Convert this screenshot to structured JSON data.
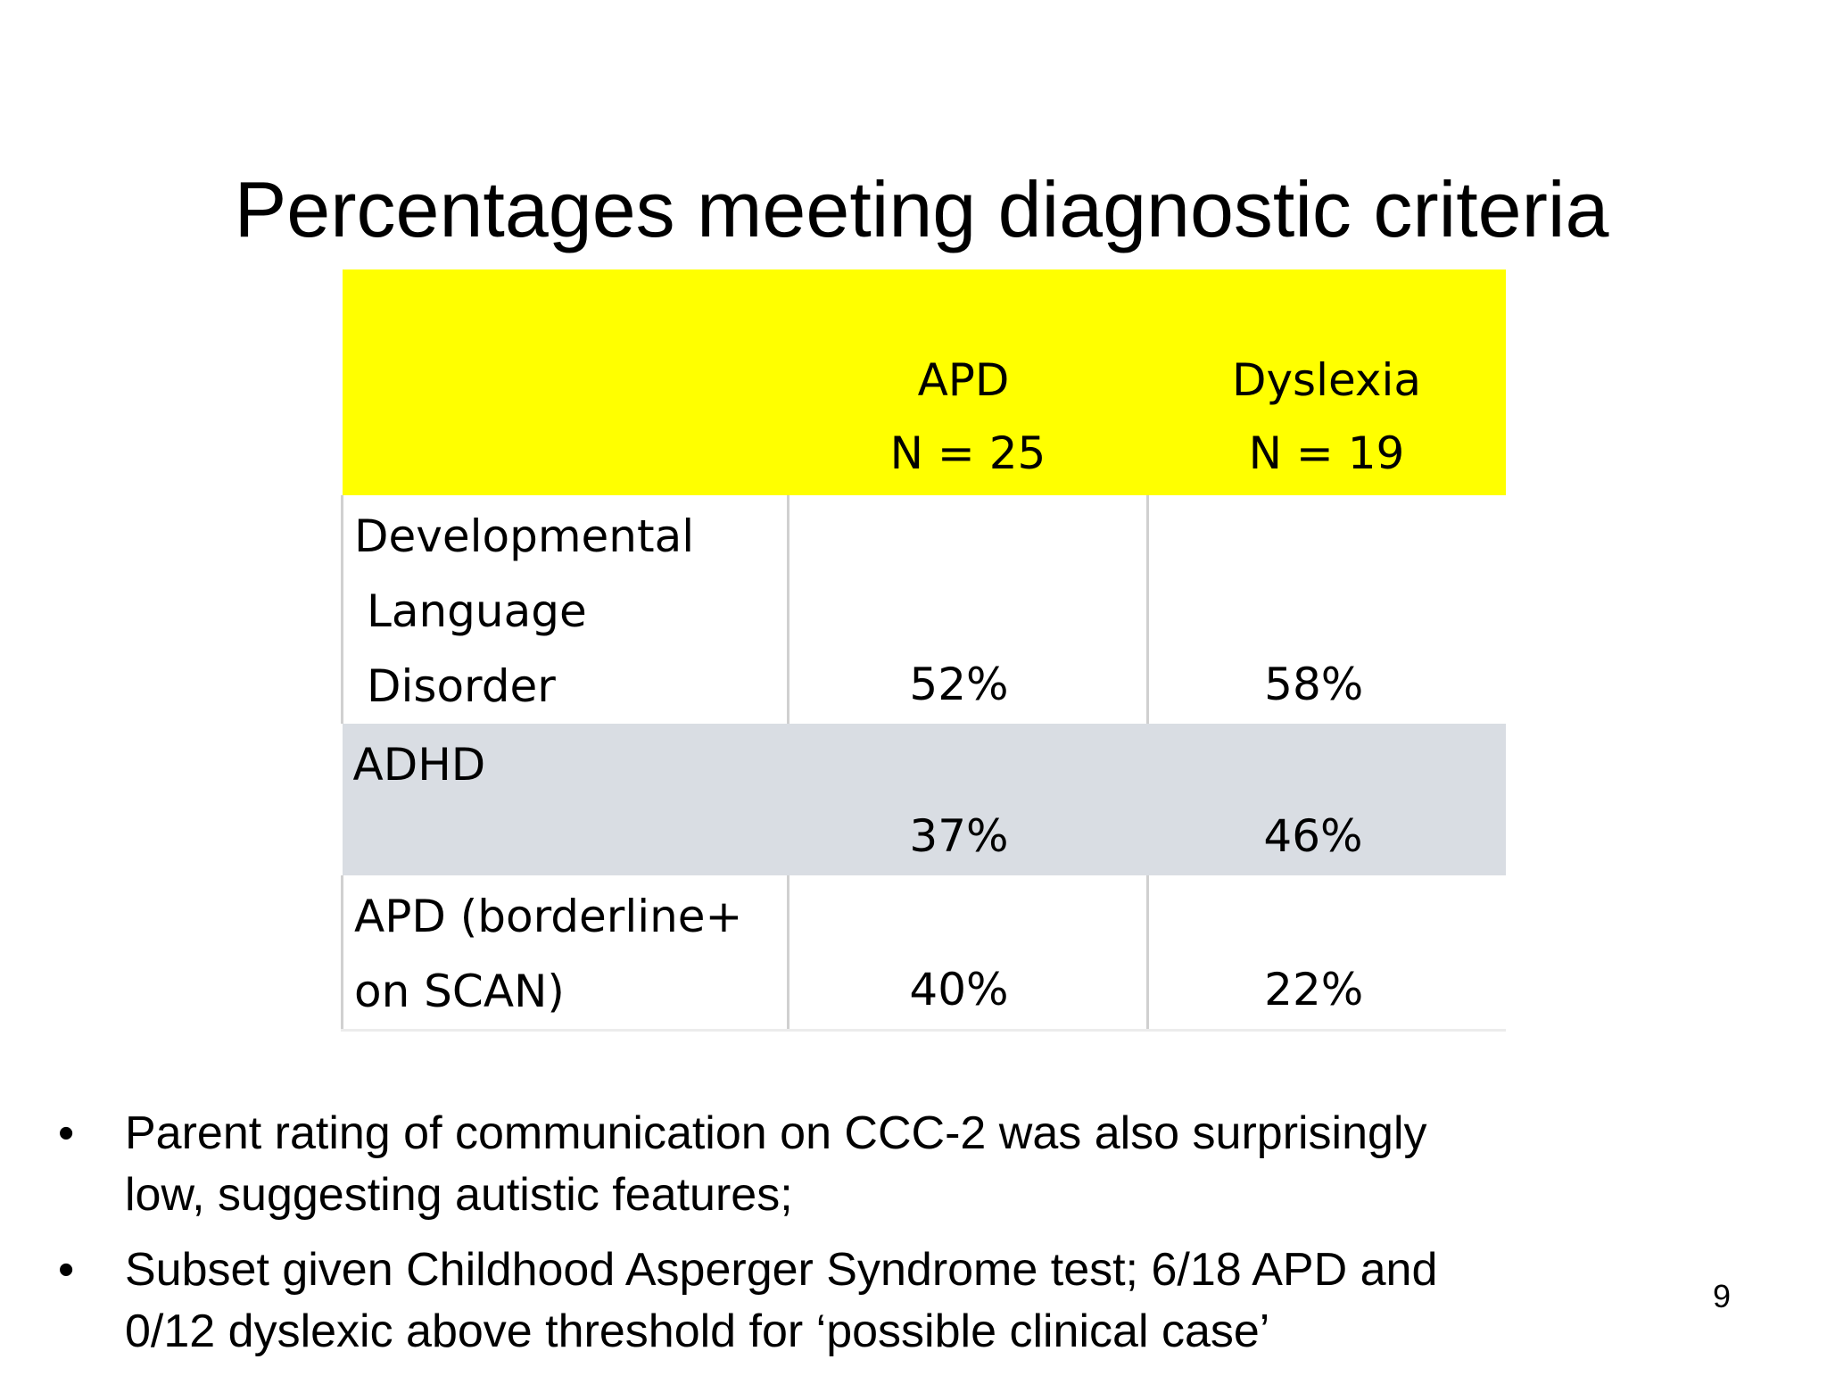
{
  "slide": {
    "title": "Percentages meeting diagnostic criteria",
    "page_number": "9"
  },
  "table": {
    "columns": [
      {
        "line1": "APD",
        "line2": "N = 25"
      },
      {
        "line1": "Dyslexia",
        "line2": "N = 19"
      }
    ],
    "rows": [
      {
        "label_lines": [
          "Developmental",
          "Language",
          "Disorder"
        ],
        "apd": "52%",
        "dyslexia": "58%"
      },
      {
        "label_lines": [
          "ADHD"
        ],
        "apd": "37%",
        "dyslexia": "46%"
      },
      {
        "label_lines": [
          "APD (borderline+",
          "on SCAN)"
        ],
        "apd": "40%",
        "dyslexia": "22%"
      }
    ]
  },
  "bullets": [
    {
      "symbol": "•",
      "lines": [
        "Parent rating of communication on CCC-2 was also surprisingly",
        "low, suggesting autistic features;"
      ]
    },
    {
      "symbol": "•",
      "lines": [
        "Subset given Childhood Asperger Syndrome test; 6/18 APD and",
        "0/12 dyslexic above threshold for ‘possible clinical case’"
      ]
    }
  ],
  "colors": {
    "header_bg": "#ffff00",
    "shaded_row_bg": "#d9dde3"
  }
}
